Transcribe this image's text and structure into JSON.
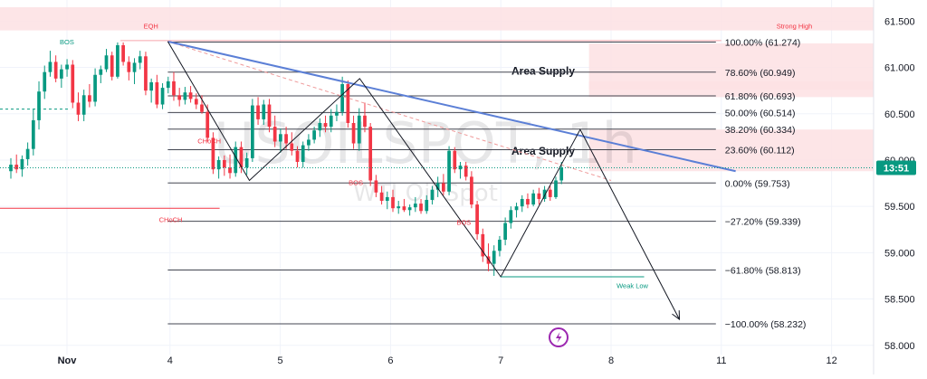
{
  "chart_data": {
    "type": "candlestick",
    "title": "USOILSPOT, 1h",
    "subtitle": "WTI Oil Spot",
    "y_range": [
      57.9,
      61.65
    ],
    "x_range": [
      0,
      12.85
    ],
    "x_ticks": [
      {
        "label": "Nov",
        "x": 0
      },
      {
        "label": "4",
        "x": 1
      },
      {
        "label": "5",
        "x": 2
      },
      {
        "label": "6",
        "x": 3
      },
      {
        "label": "7",
        "x": 4
      },
      {
        "label": "8",
        "x": 5
      },
      {
        "label": "11",
        "x": 6
      },
      {
        "label": "12",
        "x": 7
      }
    ],
    "y_ticks": [
      "61.500",
      "61.000",
      "60.500",
      "60.000",
      "59.500",
      "59.000",
      "58.500",
      "58.000"
    ],
    "current_price": {
      "value": 59.917,
      "label": "13:51",
      "color": "#089981"
    },
    "fib_levels": [
      {
        "label": "100.00% (61.274)",
        "value": 61.274
      },
      {
        "label": "78.60% (60.949)",
        "value": 60.949
      },
      {
        "label": "61.80% (60.693)",
        "value": 60.693
      },
      {
        "label": "50.00% (60.514)",
        "value": 60.514
      },
      {
        "label": "38.20% (60.334)",
        "value": 60.334
      },
      {
        "label": "23.60% (60.112)",
        "value": 60.112
      },
      {
        "label": "0.00% (59.753)",
        "value": 59.753
      },
      {
        "label": "−27.20% (59.339)",
        "value": 59.339
      },
      {
        "label": "−61.80% (58.813)",
        "value": 58.813
      },
      {
        "label": "−100.00% (58.232)",
        "value": 58.232
      }
    ],
    "zones": [
      {
        "label": "",
        "y_top": 61.65,
        "y_bottom": 61.4,
        "x_start": 0,
        "x_end": 12.85
      },
      {
        "label": "Area Supply",
        "y_top": 61.26,
        "y_bottom": 60.68,
        "x_start": 4.8,
        "x_end": 12.85
      },
      {
        "label": "",
        "y_top": 60.85,
        "y_bottom": 60.76,
        "x_start": 4.8,
        "x_end": 12.85
      },
      {
        "label": "Area Supply",
        "y_top": 60.33,
        "y_bottom": 59.88,
        "x_start": 4.8,
        "x_end": 12.85
      }
    ],
    "annotations": [
      {
        "text": "EQH",
        "x": 0.76,
        "y": 61.42,
        "color": "#f23645"
      },
      {
        "text": "BOS",
        "x": 0.0,
        "y": 61.25,
        "color": "#089981"
      },
      {
        "text": "Strong High",
        "x": 6.5,
        "y": 61.42,
        "color": "#f23645"
      },
      {
        "text": "CHoCH",
        "x": 1.25,
        "y": 60.18,
        "color": "#f23645"
      },
      {
        "text": "CHoCH",
        "x": 0.9,
        "y": 59.33,
        "color": "#f23645"
      },
      {
        "text": "BOS",
        "x": 2.62,
        "y": 59.73,
        "color": "#f23645"
      },
      {
        "text": "BOS",
        "x": 3.6,
        "y": 59.3,
        "color": "#f23645"
      },
      {
        "text": "Weak Low",
        "x": 5.05,
        "y": 58.62,
        "color": "#089981"
      }
    ],
    "candles": [
      [
        59.88,
        60.02,
        59.8,
        59.95
      ],
      [
        59.95,
        60.06,
        59.86,
        59.9
      ],
      [
        59.9,
        60.05,
        59.82,
        60.01
      ],
      [
        60.01,
        60.19,
        59.94,
        60.12
      ],
      [
        60.12,
        60.55,
        60.05,
        60.43
      ],
      [
        60.43,
        60.85,
        60.33,
        60.74
      ],
      [
        60.74,
        61.02,
        60.66,
        60.95
      ],
      [
        60.95,
        61.18,
        60.9,
        61.06
      ],
      [
        61.06,
        61.13,
        60.84,
        60.88
      ],
      [
        60.88,
        61.03,
        60.78,
        60.98
      ],
      [
        60.98,
        61.09,
        60.9,
        61.03
      ],
      [
        61.03,
        61.08,
        60.56,
        60.62
      ],
      [
        60.62,
        60.73,
        60.42,
        60.49
      ],
      [
        60.49,
        60.76,
        60.42,
        60.7
      ],
      [
        60.7,
        60.82,
        60.57,
        60.63
      ],
      [
        60.63,
        60.99,
        60.58,
        60.92
      ],
      [
        60.92,
        61.02,
        60.83,
        60.98
      ],
      [
        60.98,
        61.2,
        60.95,
        61.13
      ],
      [
        61.13,
        61.17,
        60.86,
        60.9
      ],
      [
        60.9,
        61.27,
        60.88,
        61.24
      ],
      [
        61.24,
        61.27,
        61.02,
        61.06
      ],
      [
        61.06,
        61.12,
        60.86,
        60.95
      ],
      [
        60.95,
        61.1,
        60.82,
        61.05
      ],
      [
        61.05,
        61.18,
        60.98,
        61.12
      ],
      [
        61.12,
        61.17,
        60.7,
        60.75
      ],
      [
        60.75,
        60.88,
        60.62,
        60.84
      ],
      [
        60.84,
        60.92,
        60.56,
        60.6
      ],
      [
        60.6,
        60.83,
        60.55,
        60.78
      ],
      [
        60.78,
        60.9,
        60.72,
        60.85
      ],
      [
        60.85,
        60.95,
        60.64,
        60.7
      ],
      [
        60.7,
        60.78,
        60.58,
        60.65
      ],
      [
        60.65,
        60.79,
        60.6,
        60.73
      ],
      [
        60.73,
        60.8,
        60.62,
        60.66
      ],
      [
        60.66,
        60.72,
        60.55,
        60.6
      ],
      [
        60.6,
        60.7,
        60.5,
        60.52
      ],
      [
        60.52,
        60.6,
        60.2,
        60.24
      ],
      [
        60.24,
        60.3,
        59.85,
        59.9
      ],
      [
        59.9,
        60.04,
        59.8,
        60.0
      ],
      [
        60.0,
        60.05,
        59.83,
        59.92
      ],
      [
        59.92,
        60.06,
        59.8,
        59.86
      ],
      [
        59.86,
        60.2,
        59.82,
        60.14
      ],
      [
        60.14,
        60.2,
        59.86,
        59.92
      ],
      [
        59.92,
        60.08,
        59.84,
        60.02
      ],
      [
        60.02,
        60.66,
        59.98,
        60.59
      ],
      [
        60.59,
        60.68,
        60.38,
        60.44
      ],
      [
        60.44,
        60.65,
        60.38,
        60.6
      ],
      [
        60.6,
        60.66,
        60.3,
        60.36
      ],
      [
        60.36,
        60.48,
        60.14,
        60.2
      ],
      [
        60.2,
        60.34,
        60.08,
        60.28
      ],
      [
        60.28,
        60.36,
        60.12,
        60.18
      ],
      [
        60.18,
        60.3,
        60.05,
        60.1
      ],
      [
        60.1,
        60.15,
        59.92,
        59.98
      ],
      [
        59.98,
        60.2,
        59.92,
        60.16
      ],
      [
        60.16,
        60.28,
        60.1,
        60.22
      ],
      [
        60.22,
        60.36,
        60.18,
        60.32
      ],
      [
        60.32,
        60.45,
        60.25,
        60.4
      ],
      [
        60.4,
        60.48,
        60.3,
        60.36
      ],
      [
        60.36,
        60.55,
        60.3,
        60.48
      ],
      [
        60.48,
        60.6,
        60.42,
        60.52
      ],
      [
        60.52,
        60.9,
        60.48,
        60.82
      ],
      [
        60.82,
        60.86,
        60.35,
        60.4
      ],
      [
        60.4,
        60.48,
        60.12,
        60.18
      ],
      [
        60.18,
        60.56,
        60.1,
        60.48
      ],
      [
        60.48,
        60.62,
        60.3,
        60.36
      ],
      [
        60.36,
        60.4,
        59.72,
        59.78
      ],
      [
        59.78,
        59.84,
        59.6,
        59.65
      ],
      [
        59.65,
        59.72,
        59.52,
        59.56
      ],
      [
        59.56,
        59.66,
        59.47,
        59.6
      ],
      [
        59.6,
        59.68,
        59.44,
        59.48
      ],
      [
        59.48,
        59.56,
        59.42,
        59.5
      ],
      [
        59.5,
        59.58,
        59.44,
        59.46
      ],
      [
        59.46,
        59.52,
        59.4,
        59.49
      ],
      [
        59.49,
        59.6,
        59.44,
        59.53
      ],
      [
        59.53,
        59.58,
        59.42,
        59.45
      ],
      [
        59.45,
        59.62,
        59.42,
        59.57
      ],
      [
        59.57,
        59.72,
        59.52,
        59.68
      ],
      [
        59.68,
        59.82,
        59.6,
        59.75
      ],
      [
        59.75,
        59.85,
        59.62,
        59.66
      ],
      [
        59.66,
        60.15,
        59.62,
        60.1
      ],
      [
        60.1,
        60.14,
        59.86,
        59.9
      ],
      [
        59.9,
        59.98,
        59.8,
        59.94
      ],
      [
        59.94,
        59.98,
        59.78,
        59.82
      ],
      [
        59.82,
        59.88,
        59.48,
        59.52
      ],
      [
        59.52,
        59.56,
        59.14,
        59.2
      ],
      [
        59.2,
        59.26,
        58.9,
        58.96
      ],
      [
        58.96,
        59.1,
        58.8,
        58.88
      ],
      [
        58.88,
        59.08,
        58.75,
        59.02
      ],
      [
        59.02,
        59.18,
        58.96,
        59.14
      ],
      [
        59.14,
        59.38,
        59.08,
        59.32
      ],
      [
        59.32,
        59.5,
        59.26,
        59.46
      ],
      [
        59.46,
        59.54,
        59.38,
        59.5
      ],
      [
        59.5,
        59.62,
        59.44,
        59.58
      ],
      [
        59.58,
        59.64,
        59.48,
        59.52
      ],
      [
        59.52,
        59.68,
        59.5,
        59.64
      ],
      [
        59.64,
        59.7,
        59.52,
        59.58
      ],
      [
        59.58,
        59.72,
        59.55,
        59.68
      ],
      [
        59.68,
        59.72,
        59.56,
        59.6
      ],
      [
        59.6,
        59.82,
        59.58,
        59.78
      ],
      [
        59.78,
        59.98,
        59.74,
        59.92
      ]
    ],
    "drawings": {
      "trendline": [
        [
          0.98,
          61.28
        ],
        [
          6.13,
          59.88
        ]
      ],
      "dashed_trendline": [
        [
          0.98,
          61.28
        ],
        [
          5.0,
          59.78
        ]
      ],
      "zigzag": [
        [
          0.98,
          61.28
        ],
        [
          1.72,
          59.78
        ],
        [
          2.72,
          60.88
        ],
        [
          4.0,
          58.74
        ],
        [
          4.72,
          60.33
        ],
        [
          5.62,
          58.28
        ]
      ]
    }
  },
  "colors": {
    "up": "#089981",
    "down": "#f23645",
    "trendline": "#5b7fd6",
    "zone_fill": "#fde1e3",
    "grid": "#f0f3fa",
    "text": "#131722"
  }
}
